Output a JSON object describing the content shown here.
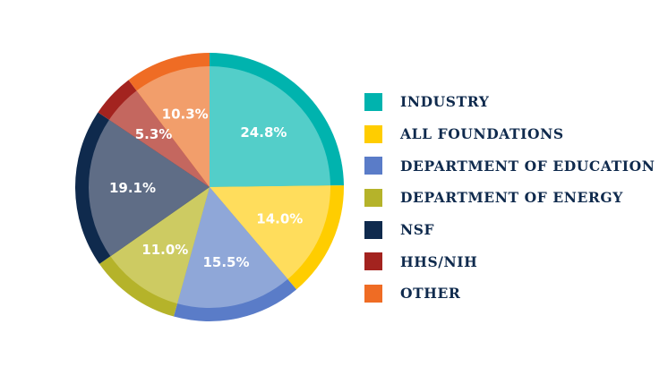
{
  "chart_data": {
    "type": "pie",
    "title": "",
    "legend_position": "right",
    "series": [
      {
        "name": "INDUSTRY",
        "value": 24.8,
        "label": "24.8%",
        "color": "#00b3ae",
        "fill_color": "#53cec9"
      },
      {
        "name": "ALL FOUNDATIONS",
        "value": 14.0,
        "label": "14.0%",
        "color": "#ffcd00",
        "fill_color": "#ffdd5c"
      },
      {
        "name": "DEPARTMENT OF EDUCATION",
        "value": 15.5,
        "label": "15.5%",
        "color": "#5a7cc8",
        "fill_color": "#8fa7d8"
      },
      {
        "name": "DEPARTMENT OF ENERGY",
        "value": 11.0,
        "label": "11.0%",
        "color": "#b5b32a",
        "fill_color": "#cdcb62"
      },
      {
        "name": "NSF",
        "value": 19.1,
        "label": "19.1%",
        "color": "#0f2a4d",
        "fill_color": "#5f6d86"
      },
      {
        "name": "HHS/NIH",
        "value": 5.3,
        "label": "5.3%",
        "color": "#a3231f",
        "fill_color": "#c4675f"
      },
      {
        "name": "OTHER",
        "value": 10.3,
        "label": "10.3%",
        "color": "#ef6c24",
        "fill_color": "#f29e6b"
      }
    ]
  }
}
